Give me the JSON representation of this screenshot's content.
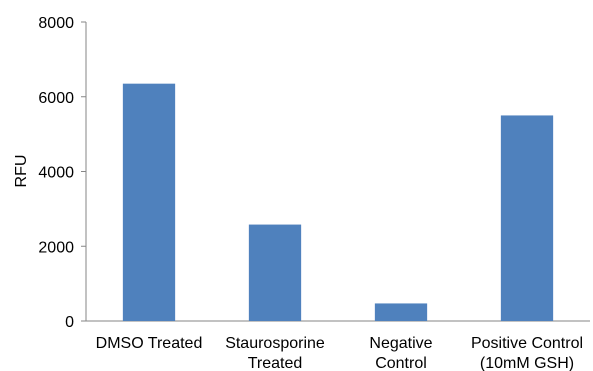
{
  "chart_data": {
    "type": "bar",
    "title": "",
    "xlabel": "",
    "ylabel": "RFU",
    "ylim": [
      0,
      8000
    ],
    "yticks": [
      0,
      2000,
      4000,
      6000,
      8000
    ],
    "grid": false,
    "legend": "none",
    "bar_color": "#4F81BD",
    "categories": [
      [
        "DMSO Treated"
      ],
      [
        "Staurosporine",
        "Treated"
      ],
      [
        "Negative",
        "Control"
      ],
      [
        "Positive Control",
        "(10mM GSH)"
      ]
    ],
    "values": [
      6350,
      2580,
      470,
      5500
    ]
  }
}
